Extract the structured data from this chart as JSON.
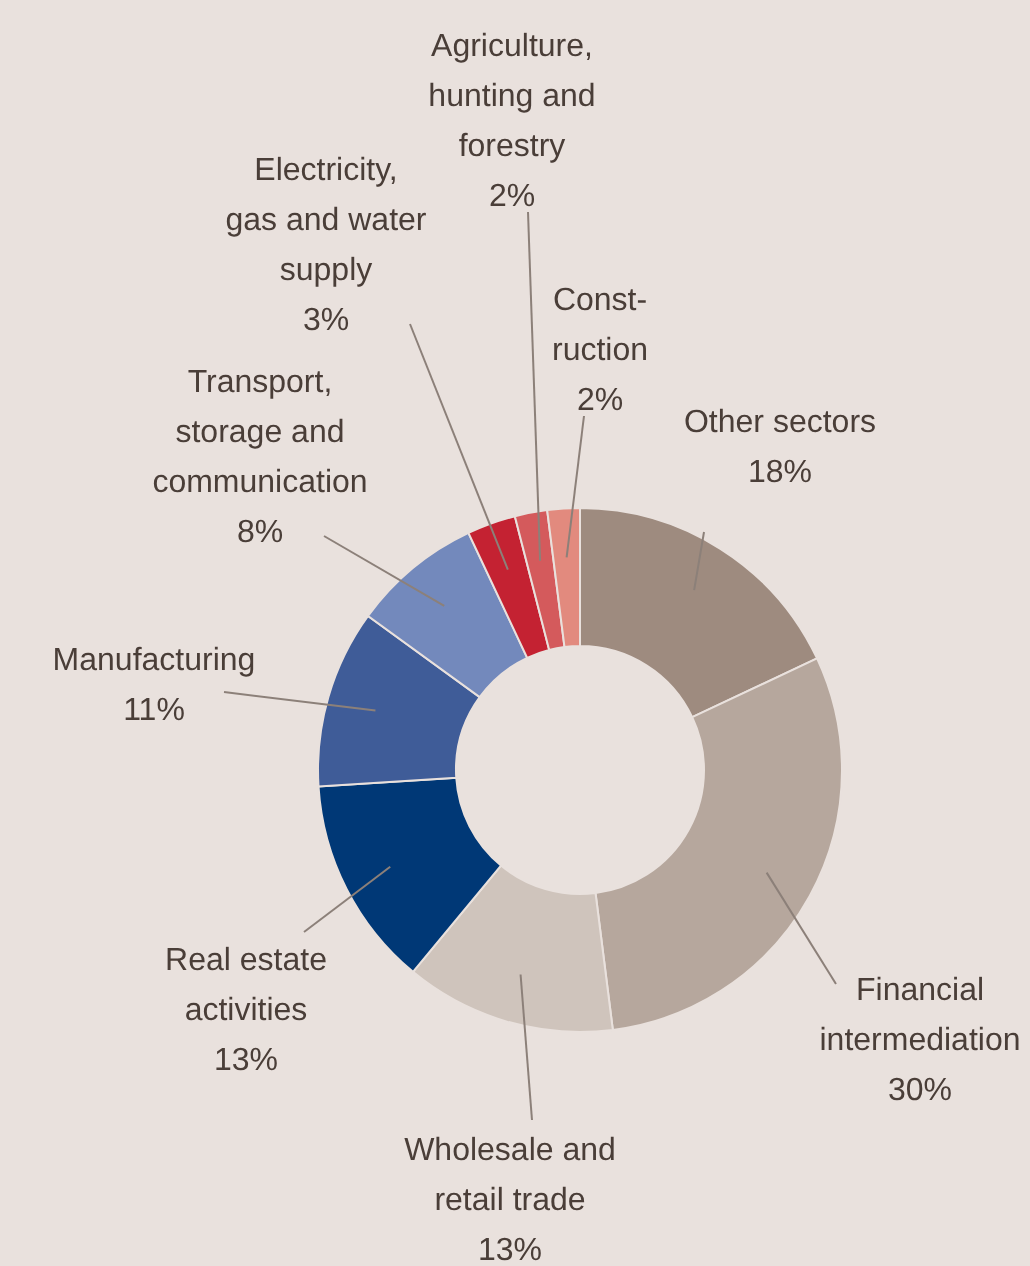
{
  "chart_data": {
    "type": "donut",
    "categories": [
      "Other sectors",
      "Financial intermediation",
      "Wholesale and retail trade",
      "Real estate activities",
      "Manufacturing",
      "Transport, storage and communication",
      "Electricity, gas and water supply",
      "Agriculture, hunting and forestry",
      "Const- ruction"
    ],
    "values": [
      18,
      30,
      13,
      13,
      11,
      8,
      3,
      2,
      2
    ],
    "colors": [
      "#9e8b7f",
      "#b6a79d",
      "#cfc4bc",
      "#003876",
      "#3f5c98",
      "#7389bc",
      "#c42232",
      "#d45a5c",
      "#e28a7e"
    ],
    "value_labels": [
      "18%",
      "30%",
      "13%",
      "13%",
      "11%",
      "8%",
      "3%",
      "2%",
      "2%"
    ]
  }
}
